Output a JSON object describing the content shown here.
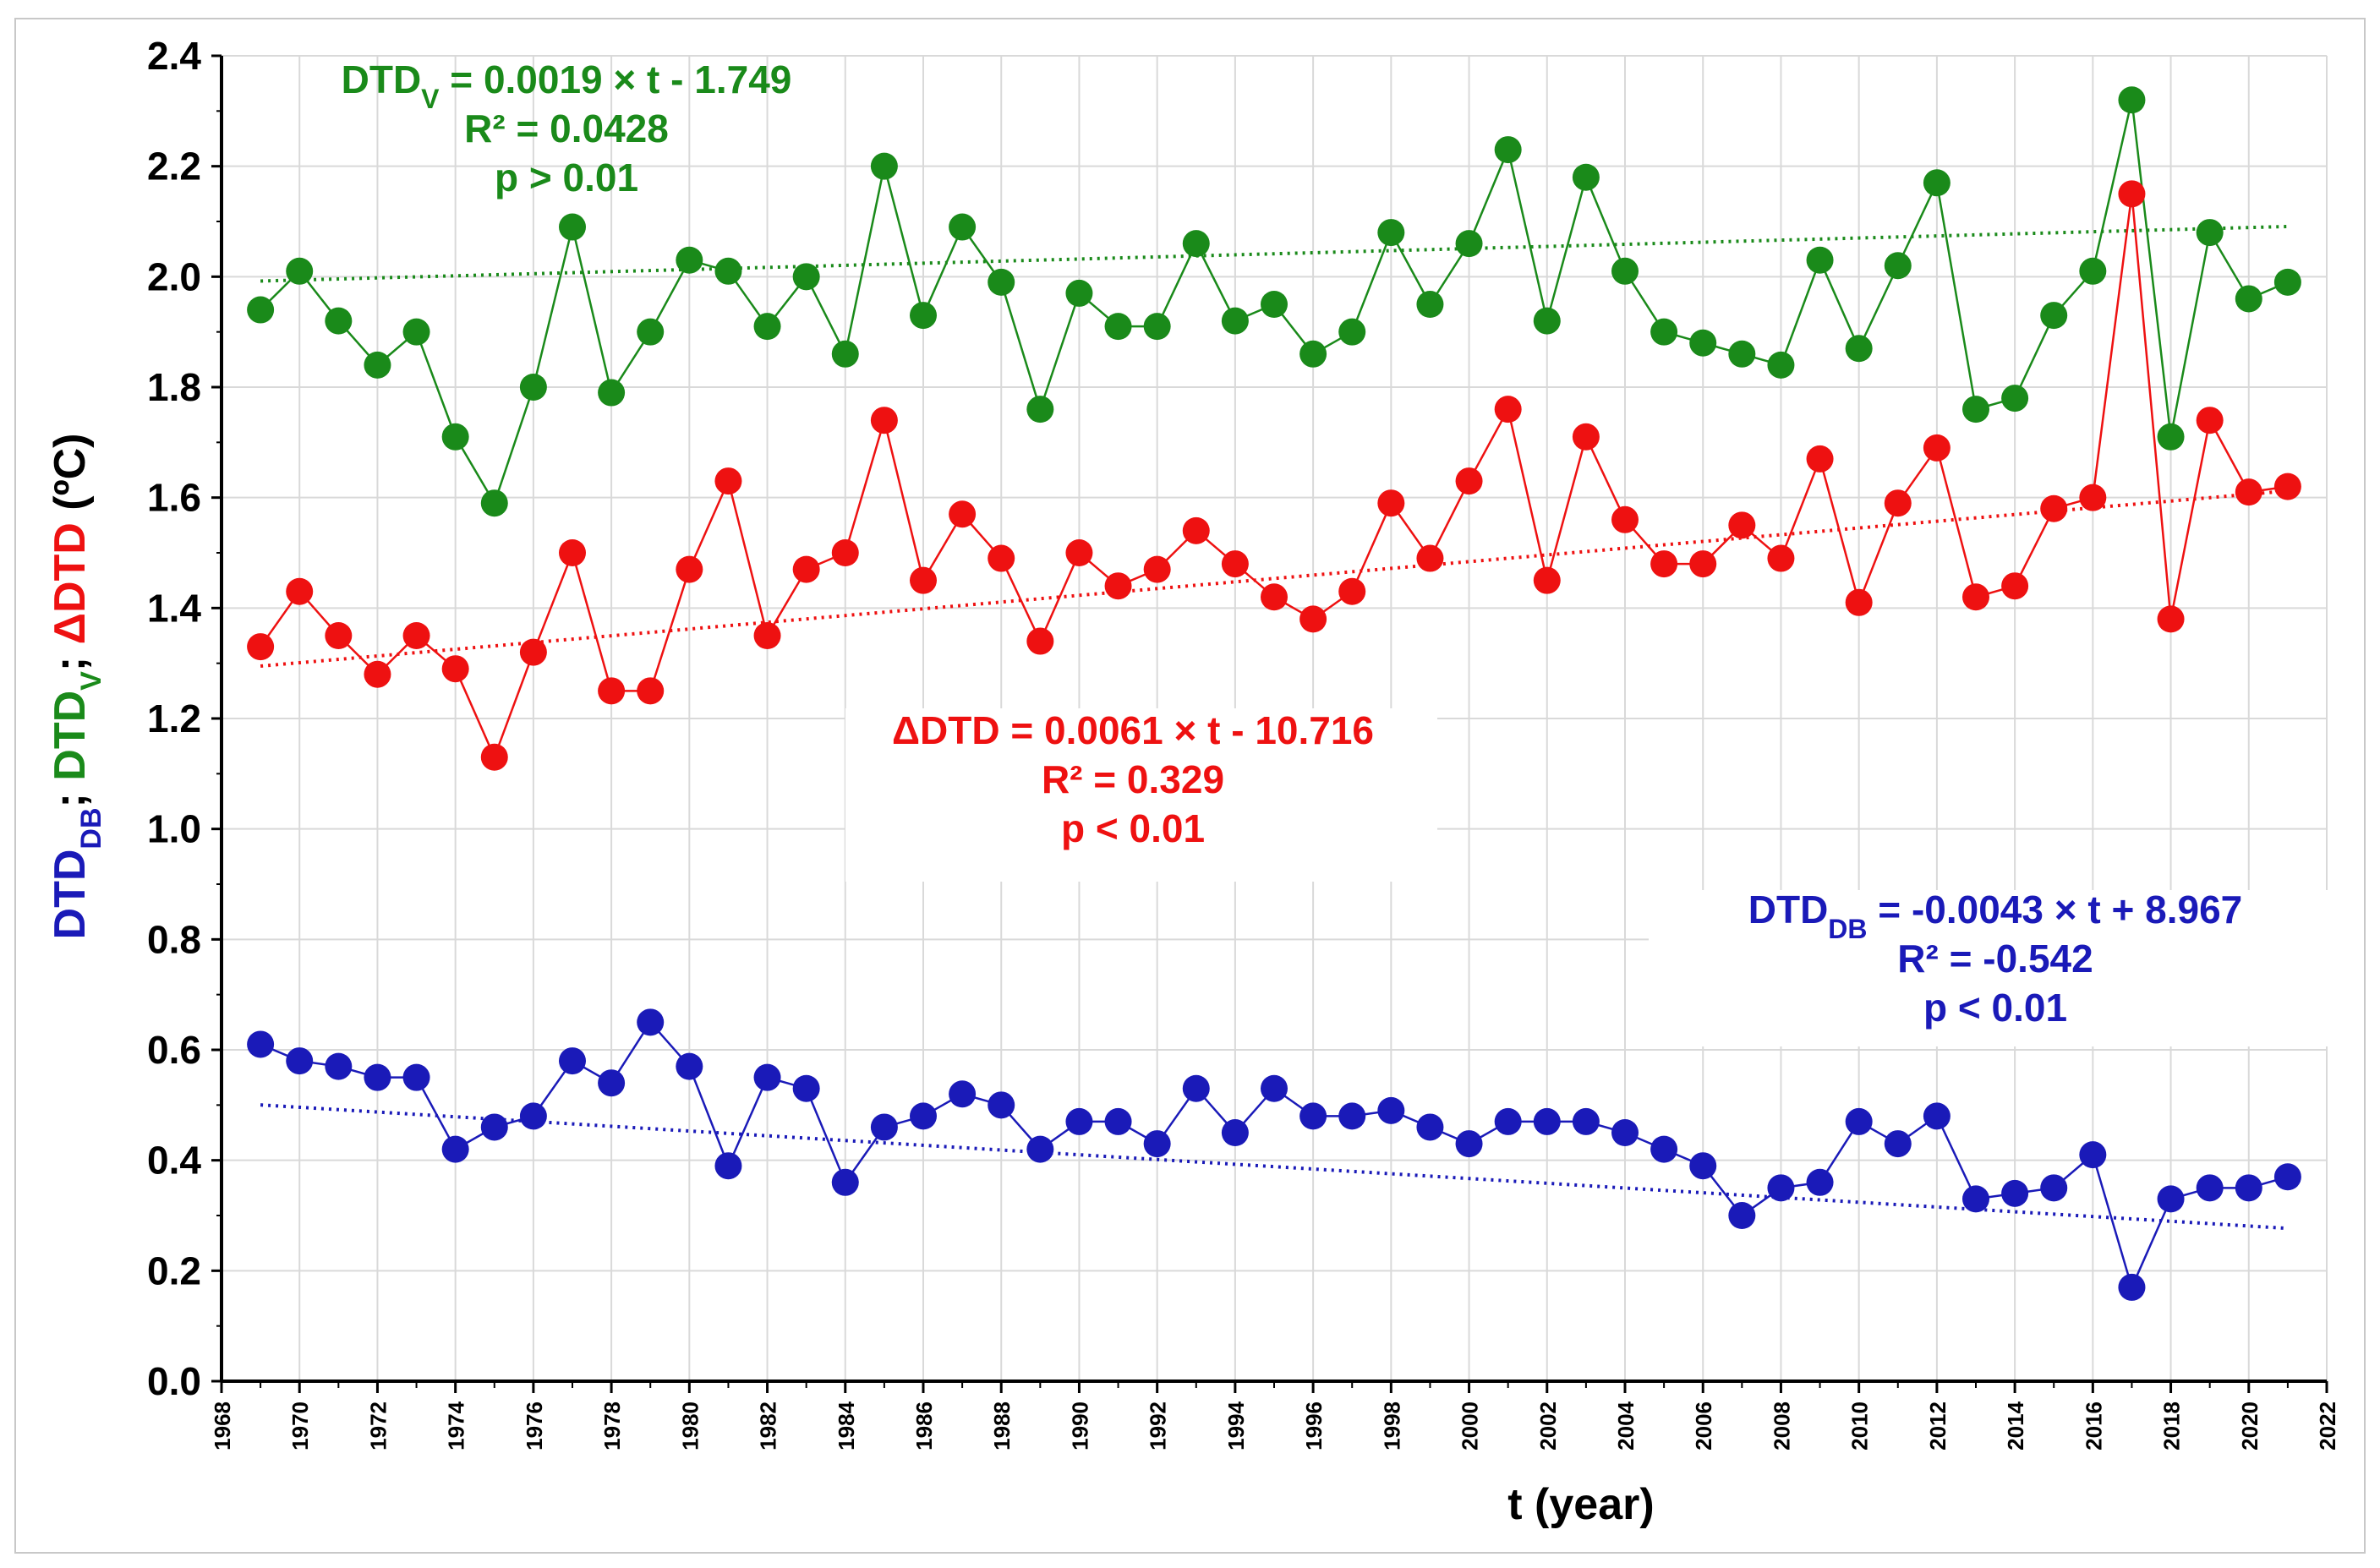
{
  "chart_data": {
    "type": "line",
    "xlabel": "t (year)",
    "ylabel_parts": [
      {
        "text": "DTD",
        "sub": "DB",
        "color": "#1a1ab8"
      },
      {
        "text": "; ",
        "color": "#000000"
      },
      {
        "text": "DTD",
        "sub": "V",
        "color": "#1a8a1a"
      },
      {
        "text": "; ",
        "color": "#000000"
      },
      {
        "text": "ΔDTD",
        "color": "#ee1111"
      },
      {
        "text": " (ºC)",
        "color": "#000000"
      }
    ],
    "xlim": [
      1968,
      2022
    ],
    "ylim": [
      0,
      2.4
    ],
    "x_ticks": [
      1968,
      1970,
      1972,
      1974,
      1976,
      1978,
      1980,
      1982,
      1984,
      1986,
      1988,
      1990,
      1992,
      1994,
      1996,
      1998,
      2000,
      2002,
      2004,
      2006,
      2008,
      2010,
      2012,
      2014,
      2016,
      2018,
      2020,
      2022
    ],
    "y_ticks": [
      "0.0",
      "0.2",
      "0.4",
      "0.6",
      "0.8",
      "1.0",
      "1.2",
      "1.4",
      "1.6",
      "1.8",
      "2.0",
      "2.2",
      "2.4"
    ],
    "grid": true,
    "x": [
      1969,
      1970,
      1971,
      1972,
      1973,
      1974,
      1975,
      1976,
      1977,
      1978,
      1979,
      1980,
      1981,
      1982,
      1983,
      1984,
      1985,
      1986,
      1987,
      1988,
      1989,
      1990,
      1991,
      1992,
      1993,
      1994,
      1995,
      1996,
      1997,
      1998,
      1999,
      2000,
      2001,
      2002,
      2003,
      2004,
      2005,
      2006,
      2007,
      2008,
      2009,
      2010,
      2011,
      2012,
      2013,
      2014,
      2015,
      2016,
      2017,
      2018,
      2019,
      2020,
      2021
    ],
    "series": [
      {
        "name": "DTD_V",
        "color": "#1a8a1a",
        "values": [
          1.94,
          2.01,
          1.92,
          1.84,
          1.9,
          1.71,
          1.59,
          1.8,
          2.09,
          1.79,
          1.9,
          2.03,
          2.01,
          1.91,
          2.0,
          1.86,
          2.2,
          1.93,
          2.09,
          1.99,
          1.76,
          1.97,
          1.91,
          1.91,
          2.06,
          1.92,
          1.95,
          1.86,
          1.9,
          2.08,
          1.95,
          2.06,
          2.23,
          1.92,
          2.18,
          2.01,
          1.9,
          1.88,
          1.86,
          1.84,
          2.03,
          1.87,
          2.02,
          2.17,
          1.76,
          1.78,
          1.93,
          2.01,
          2.32,
          1.71,
          2.08,
          1.96,
          1.99
        ],
        "trend": {
          "slope": 0.0019,
          "intercept": -1.749,
          "x_start": 1969,
          "x_end": 2021
        },
        "annotation": {
          "lhs": "DTD",
          "lhs_sub": "V",
          "rhs": " = 0.0019 × t - 1.749",
          "r2": "R² = 0.0428",
          "p": "p > 0.01"
        }
      },
      {
        "name": "ΔDTD",
        "color": "#ee1111",
        "values": [
          1.33,
          1.43,
          1.35,
          1.28,
          1.35,
          1.29,
          1.13,
          1.32,
          1.5,
          1.25,
          1.25,
          1.47,
          1.63,
          1.35,
          1.47,
          1.5,
          1.74,
          1.45,
          1.57,
          1.49,
          1.34,
          1.5,
          1.44,
          1.47,
          1.54,
          1.48,
          1.42,
          1.38,
          1.43,
          1.59,
          1.49,
          1.63,
          1.76,
          1.45,
          1.71,
          1.56,
          1.48,
          1.48,
          1.55,
          1.49,
          1.67,
          1.41,
          1.59,
          1.69,
          1.42,
          1.44,
          1.58,
          1.6,
          2.15,
          1.38,
          1.74,
          1.61,
          1.62
        ],
        "trend": {
          "slope": 0.0061,
          "intercept": -10.716,
          "x_start": 1969,
          "x_end": 2021
        },
        "annotation": {
          "lhs": "ΔDTD",
          "lhs_sub": "",
          "rhs": " = 0.0061 × t - 10.716",
          "r2": "R² = 0.329",
          "p": "p < 0.01"
        }
      },
      {
        "name": "DTD_DB",
        "color": "#1a1ab8",
        "values": [
          0.61,
          0.58,
          0.57,
          0.55,
          0.55,
          0.42,
          0.46,
          0.48,
          0.58,
          0.54,
          0.65,
          0.57,
          0.39,
          0.55,
          0.53,
          0.36,
          0.46,
          0.48,
          0.52,
          0.5,
          0.42,
          0.47,
          0.47,
          0.43,
          0.53,
          0.45,
          0.53,
          0.48,
          0.48,
          0.49,
          0.46,
          0.43,
          0.47,
          0.47,
          0.47,
          0.45,
          0.42,
          0.39,
          0.3,
          0.35,
          0.36,
          0.47,
          0.43,
          0.48,
          0.33,
          0.34,
          0.35,
          0.41,
          0.17,
          0.33,
          0.35,
          0.35,
          0.37
        ],
        "trend": {
          "slope": -0.0043,
          "intercept": 8.967,
          "x_start": 1969,
          "x_end": 2021
        },
        "annotation": {
          "lhs": "DTD",
          "lhs_sub": "DB",
          "rhs": " = -0.0043 × t + 8.967",
          "r2": "R² = -0.542",
          "p": "p < 0.01"
        }
      }
    ]
  }
}
